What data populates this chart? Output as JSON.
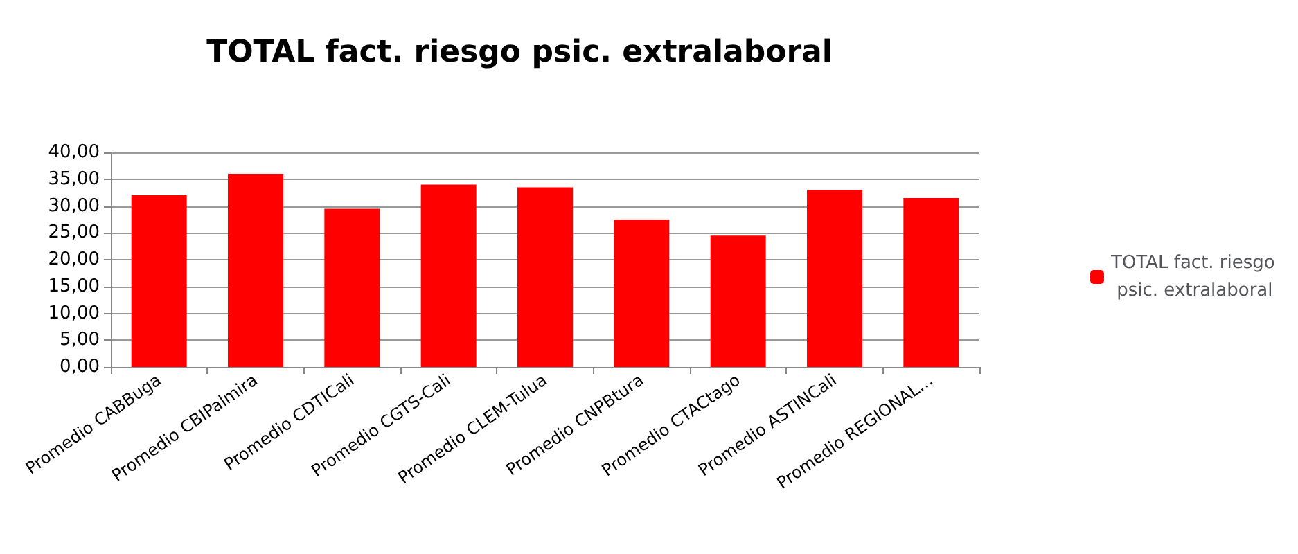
{
  "chart_data": {
    "type": "bar",
    "title": "TOTAL fact. riesgo psic. extralaboral",
    "categories": [
      "Promedio CABBuga",
      "Promedio CBIPalmira",
      "Promedio CDTICali",
      "Promedio CGTS-Cali",
      "Promedio CLEM-Tulua",
      "Promedio CNPBtura",
      "Promedio CTACtago",
      "Promedio ASTINCali",
      "Promedio REGIONAL…"
    ],
    "series": [
      {
        "name": "TOTAL fact. riesgo psic. extralaboral",
        "color": "#ff0000",
        "values": [
          32,
          36,
          29.5,
          34,
          33.5,
          27.5,
          24.5,
          33,
          31.5
        ]
      }
    ],
    "ylim": [
      0,
      40
    ],
    "yticks": [
      {
        "value": 0,
        "label": "0,00"
      },
      {
        "value": 5,
        "label": "5,00"
      },
      {
        "value": 10,
        "label": "10,00"
      },
      {
        "value": 15,
        "label": "15,00"
      },
      {
        "value": 20,
        "label": "20,00"
      },
      {
        "value": 25,
        "label": "25,00"
      },
      {
        "value": 30,
        "label": "30,00"
      },
      {
        "value": 35,
        "label": "35,00"
      },
      {
        "value": 40,
        "label": "40,00"
      }
    ],
    "grid": "y",
    "legend": "right"
  }
}
